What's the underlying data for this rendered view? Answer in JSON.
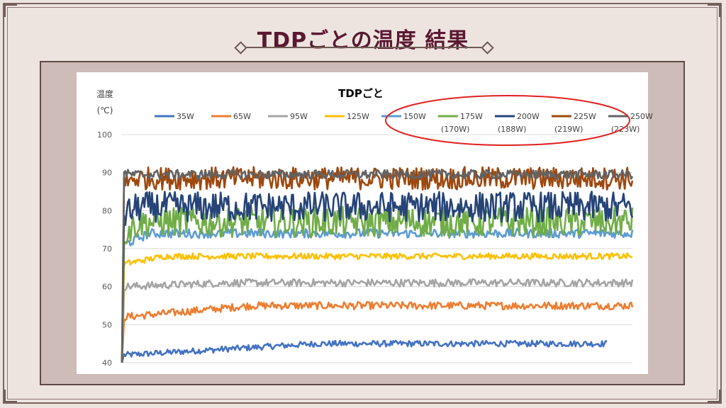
{
  "page": {
    "title": "TDPごとの温度 結果"
  },
  "colors": {
    "background": "#ede4e0",
    "frame": "#6e5a54",
    "title": "#5a1830",
    "panel": "#cdbcb8",
    "highlight_ellipse": "#e02020"
  },
  "chart_data": {
    "type": "line",
    "title": "TDPごと",
    "ylabel": "温度",
    "yunit": "(℃)",
    "ylim": [
      40,
      100
    ],
    "yticks": [
      40,
      50,
      60,
      70,
      80,
      90,
      100
    ],
    "grid": true,
    "legend_position": "top",
    "highlighted_series": [
      "175W",
      "200W",
      "225W",
      "250W"
    ],
    "series": [
      {
        "name": "35W",
        "sublabel": "",
        "color": "#4472c4",
        "start": 42,
        "level": 45,
        "noise": 0.8,
        "rise": 0.4,
        "end_fraction": 0.95
      },
      {
        "name": "65W",
        "sublabel": "",
        "color": "#ed7d31",
        "start": 52,
        "level": 55,
        "noise": 1.0,
        "rise": 0.25,
        "end_fraction": 1.0
      },
      {
        "name": "95W",
        "sublabel": "",
        "color": "#a5a5a5",
        "start": 60,
        "level": 61,
        "noise": 1.0,
        "rise": 0.2,
        "end_fraction": 1.0
      },
      {
        "name": "125W",
        "sublabel": "",
        "color": "#ffc000",
        "start": 66,
        "level": 68,
        "noise": 0.8,
        "rise": 0.08,
        "end_fraction": 1.0
      },
      {
        "name": "150W",
        "sublabel": "",
        "color": "#5b9bd5",
        "start": 71,
        "level": 74,
        "noise": 1.2,
        "rise": 0.05,
        "end_fraction": 1.0
      },
      {
        "name": "175W",
        "sublabel": "(170W)",
        "color": "#70ad47",
        "start": 74,
        "level": 77,
        "noise": 4.0,
        "rise": 0.03,
        "end_fraction": 1.0
      },
      {
        "name": "200W",
        "sublabel": "(188W)",
        "color": "#264478",
        "start": 79,
        "level": 81,
        "noise": 4.0,
        "rise": 0.03,
        "end_fraction": 1.0
      },
      {
        "name": "225W",
        "sublabel": "(219W)",
        "color": "#9e480e",
        "start": 87,
        "level": 88.5,
        "noise": 3.0,
        "rise": 0.02,
        "end_fraction": 1.0
      },
      {
        "name": "250W",
        "sublabel": "(223W)",
        "color": "#636363",
        "start": 90,
        "level": 89.5,
        "noise": 1.2,
        "rise": 0.01,
        "end_fraction": 1.0
      }
    ]
  }
}
